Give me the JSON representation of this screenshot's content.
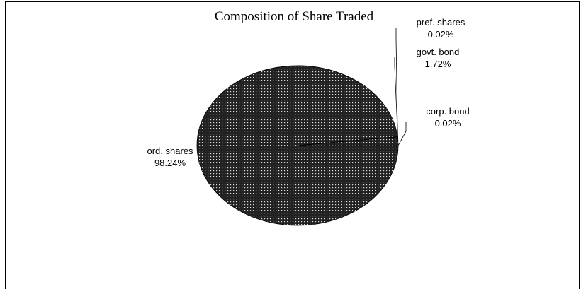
{
  "chart_data": {
    "type": "pie",
    "title": "Composition of Share Traded",
    "categories": [
      "ord. shares",
      "pref. shares",
      "govt. bond",
      "corp. bond"
    ],
    "values": [
      98.24,
      0.02,
      1.72,
      0.02
    ],
    "value_labels": [
      "98.24%",
      "0.02%",
      "1.72%",
      "0.02%"
    ],
    "color": "#333333"
  }
}
